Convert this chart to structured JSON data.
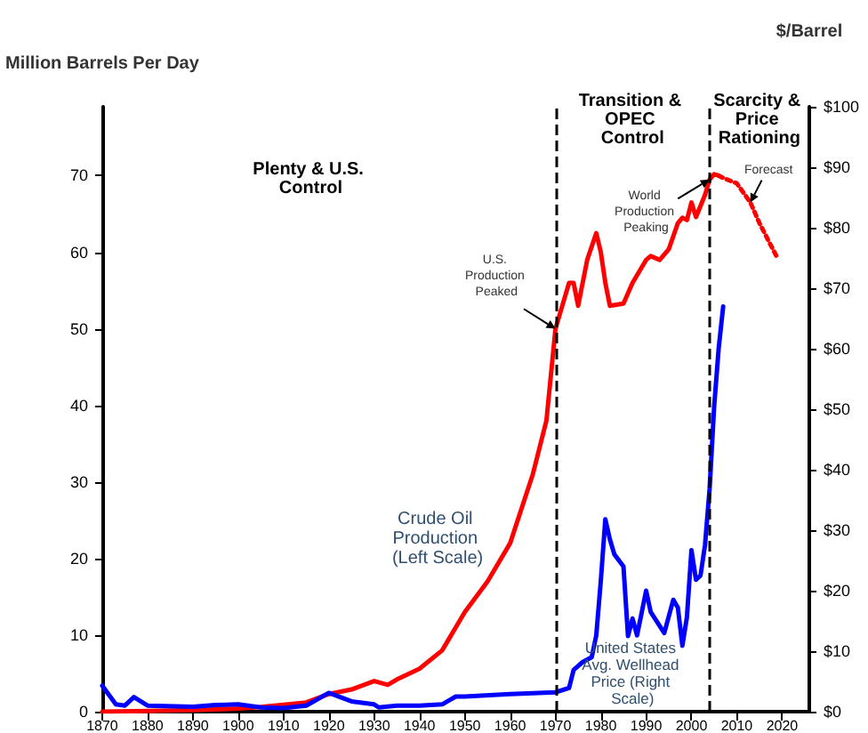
{
  "chart_data": {
    "type": "line",
    "ylabel": "Million Barrels Per Day",
    "y2label": "$/Barrel",
    "annotations": [
      "Plenty & U.S. Control",
      "Transition & OPEC Control",
      "Scarcity & Price Rationing",
      {
        "text": "U.S. Production Peaked",
        "x": 1970,
        "y": 50
      },
      {
        "text": "World Production Peaking",
        "x": 2004,
        "y": 69.5
      },
      {
        "text": "Forecast",
        "x": 2013,
        "y": 66.5
      }
    ],
    "series": [
      {
        "name": "Crude Oil Production (Left Scale)",
        "color": "#ff0000",
        "x": [
          1870,
          1880,
          1890,
          1900,
          1905,
          1910,
          1915,
          1920,
          1925,
          1930,
          1933,
          1935,
          1940,
          1945,
          1950,
          1955,
          1960,
          1965,
          1968,
          1970,
          1973,
          1974,
          1975,
          1977,
          1979,
          1980,
          1981,
          1982,
          1985,
          1987,
          1989,
          1990,
          1991,
          1993,
          1995,
          1997,
          1998,
          1999,
          2000,
          2001,
          2003,
          2004,
          2005,
          2006
        ],
        "values": [
          0,
          0.1,
          0.2,
          0.4,
          0.6,
          0.9,
          1.2,
          2.3,
          2.9,
          4,
          3.5,
          4.2,
          5.6,
          8,
          13,
          17,
          22,
          31,
          38,
          50,
          56,
          56,
          53,
          59,
          62.5,
          60,
          56,
          53,
          53.3,
          56,
          58,
          59,
          59.5,
          59,
          60.4,
          63.8,
          64.5,
          64.2,
          66.5,
          64.6,
          67.5,
          69.5,
          70.2,
          70
        ]
      },
      {
        "color": "#ff0000",
        "line_style": "dotted",
        "x": [
          2006,
          2007,
          2010,
          2013,
          2015,
          2017,
          2019
        ],
        "values": [
          70,
          69.7,
          69,
          66.5,
          63.8,
          61.5,
          59.2
        ]
      },
      {
        "name": "United States Avg. Wellhead Price (Right Scale)",
        "color": "#0000ff",
        "axis": "y2",
        "x": [
          1870,
          1873,
          1875,
          1877,
          1880,
          1890,
          1895,
          1900,
          1905,
          1910,
          1915,
          1920,
          1925,
          1930,
          1931,
          1935,
          1940,
          1945,
          1948,
          1950,
          1960,
          1970,
          1973,
          1974,
          1976,
          1978,
          1979,
          1980,
          1981,
          1982,
          1983,
          1985,
          1986,
          1987,
          1988,
          1990,
          1991,
          1994,
          1996,
          1997,
          1998,
          1999,
          2000,
          2001,
          2002,
          2003,
          2004,
          2005,
          2006,
          2007
        ],
        "values": [
          4.3,
          1.2,
          1,
          2.4,
          1,
          0.8,
          1.1,
          1.2,
          0.7,
          0.6,
          1,
          3.1,
          1.7,
          1.2,
          0.7,
          1,
          1,
          1.2,
          2.5,
          2.5,
          2.9,
          3.2,
          3.9,
          6.9,
          8.2,
          9,
          12.6,
          21.6,
          31.8,
          28.5,
          26,
          24,
          12.5,
          15.4,
          12.6,
          20,
          16.5,
          13,
          18.5,
          17.2,
          10.9,
          15.6,
          26.7,
          21.8,
          22.5,
          27.6,
          36.8,
          50.3,
          60,
          67
        ]
      }
    ],
    "xlim": [
      1870,
      2026
    ],
    "xticks": [
      1870,
      1880,
      1890,
      1900,
      1910,
      1920,
      1930,
      1940,
      1950,
      1960,
      1970,
      1980,
      1990,
      2000,
      2010,
      2020
    ],
    "ylim": [
      0,
      79
    ],
    "yticks": [
      0,
      10,
      20,
      30,
      40,
      50,
      60,
      70
    ],
    "y2lim": [
      0,
      100
    ],
    "y2ticks": [
      {
        "value": 0,
        "label": "$0"
      },
      {
        "value": 10,
        "label": "$10"
      },
      {
        "value": 20,
        "label": "$20"
      },
      {
        "value": 30,
        "label": "$30"
      },
      {
        "value": 40,
        "label": "$40"
      },
      {
        "value": 50,
        "label": "$50"
      },
      {
        "value": 60,
        "label": "$60"
      },
      {
        "value": 70,
        "label": "$70"
      },
      {
        "value": 80,
        "label": "$80"
      },
      {
        "value": 90,
        "label": "$90"
      },
      {
        "value": 100,
        "label": "$100"
      }
    ],
    "ref_lines": [
      {
        "axis": "x",
        "value": 1970,
        "color": "#000000",
        "line_style": "dashed"
      },
      {
        "axis": "x",
        "value": 2004,
        "color": "#000000",
        "line_style": "dashed"
      }
    ],
    "marker": "none",
    "line_style": "solid"
  }
}
